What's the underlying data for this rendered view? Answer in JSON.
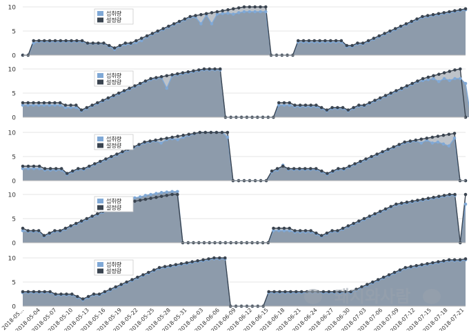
{
  "colors": {
    "intake": "#7fa8d6",
    "setpoint": "#3a4450",
    "fill": "#8a99aa",
    "grid": "#e4e4e4",
    "axis_text": "#333333"
  },
  "legend": {
    "intake_label": "섭취량",
    "set_label": "설정량"
  },
  "watermark": {
    "text": "돼지와사람"
  },
  "chart_data": [
    {
      "type": "line",
      "ylim": [
        0,
        10
      ],
      "yticks": [
        "0",
        "5",
        "10"
      ],
      "x_tick_labels": [
        "2018-05...",
        "2018-05-04",
        "2018-05-07",
        "2018-05-10",
        "2018-05-13",
        "2018-05-16",
        "2018-05-19",
        "2018-05-22",
        "2018-05-25",
        "2018-05-28",
        "2018-05-31",
        "2018-06-03",
        "2018-06-06",
        "2018-06-09",
        "2018-06-12",
        "2018-06-15",
        "2018-06-18",
        "2018-06-21",
        "2018-06-24",
        "2018-06-27",
        "2018-06-30",
        "2018-07-03",
        "2018-07-06",
        "2018-07-09",
        "2018-07-12",
        "2018-07-15",
        "2018-07-18",
        "2018-07-21"
      ],
      "series": [
        {
          "name": "설정량",
          "values": [
            0,
            0,
            3,
            3,
            3,
            3,
            3,
            3,
            3,
            3,
            3,
            3,
            2.5,
            2.5,
            2.5,
            2.5,
            2,
            1.5,
            2,
            2.5,
            2.5,
            3,
            3.5,
            4,
            4.5,
            5,
            5.5,
            6,
            6.5,
            7,
            7.5,
            8,
            8.2,
            8.4,
            8.6,
            8.8,
            9,
            9.2,
            9.4,
            9.6,
            9.8,
            10,
            10,
            10,
            10,
            10,
            0,
            0,
            0,
            0,
            0,
            3,
            3,
            3,
            3,
            3,
            3,
            3,
            3,
            3,
            2,
            2,
            2.5,
            2.5,
            3,
            3.5,
            4,
            4.5,
            5,
            5.5,
            6,
            6.5,
            7,
            7.5,
            8,
            8.2,
            8.4,
            8.6,
            8.8,
            9,
            9.2,
            9.4,
            9.6
          ]
        },
        {
          "name": "섭취량",
          "values": [
            0,
            0,
            2.5,
            2.8,
            2.8,
            2.8,
            2.8,
            2.8,
            2.8,
            2.8,
            2.8,
            2.8,
            2.4,
            2.4,
            2.4,
            2.4,
            1.8,
            1.2,
            1.8,
            2.2,
            2.3,
            2.6,
            3,
            3.8,
            4.3,
            4.8,
            5.3,
            5.8,
            6.3,
            6.8,
            7.3,
            7.8,
            7.9,
            6.5,
            8.3,
            6.5,
            8.5,
            8.6,
            8.7,
            8.5,
            8.8,
            9,
            9,
            9,
            9,
            9,
            0,
            0,
            0,
            0,
            0,
            2.7,
            2.7,
            2.7,
            2.7,
            2.7,
            2.7,
            2.7,
            2.7,
            2.7,
            1.8,
            1.8,
            2.3,
            2.3,
            2.8,
            3.3,
            3.8,
            4.3,
            4.8,
            5.3,
            5.8,
            6.3,
            6.8,
            7.3,
            7.8,
            8,
            8.2,
            8.4,
            8.6,
            8.8,
            9,
            9.2,
            9.4
          ]
        }
      ]
    },
    {
      "type": "line",
      "ylim": [
        0,
        10
      ],
      "yticks": [
        "0",
        "5",
        "10"
      ],
      "x_tick_labels": [
        "2018-05...",
        "2018-05-04",
        "2018-05-07",
        "2018-05-10",
        "2018-05-13",
        "2018-05-16",
        "2018-05-19",
        "2018-05-22",
        "2018-05-25",
        "2018-05-28",
        "2018-05-31",
        "2018-06-03",
        "2018-06-06",
        "2018-06-09",
        "2018-06-12",
        "2018-06-15",
        "2018-06-18",
        "2018-06-21",
        "2018-06-24",
        "2018-06-27",
        "2018-06-30",
        "2018-07-03",
        "2018-07-06",
        "2018-07-09",
        "2018-07-12",
        "2018-07-15",
        "2018-07-18",
        "2018-07-21"
      ],
      "series": [
        {
          "name": "설정량",
          "values": [
            3,
            3,
            3,
            3,
            3,
            3,
            3,
            3,
            2.5,
            2.5,
            2.5,
            1.5,
            2,
            2.5,
            3,
            3.5,
            4,
            4.5,
            5,
            5.5,
            6,
            6.5,
            7,
            7.5,
            8,
            8.2,
            8.4,
            8.6,
            8.8,
            9,
            9.2,
            9.4,
            9.6,
            9.8,
            10,
            10,
            10,
            10,
            0,
            0,
            0,
            0,
            0,
            0,
            0,
            0,
            0,
            0,
            3,
            3,
            3,
            2.5,
            2.5,
            2.5,
            2.5,
            2.5,
            2,
            1.5,
            2,
            2,
            2,
            1.5,
            2,
            2.5,
            2.5,
            3,
            3.5,
            4,
            4.5,
            5,
            5.5,
            6,
            6.5,
            7,
            7.5,
            8,
            8.3,
            8.6,
            8.9,
            9.2,
            9.5,
            9.8,
            10,
            0
          ]
        },
        {
          "name": "섭취량",
          "values": [
            2.5,
            2.5,
            2.5,
            2.5,
            2.5,
            2.5,
            2.5,
            2.5,
            2,
            2,
            2,
            1.3,
            1.8,
            2.3,
            2.8,
            3.3,
            3.8,
            4.3,
            4.8,
            5.3,
            5.8,
            6.3,
            6.8,
            7.3,
            7.8,
            8,
            8.2,
            6,
            8.6,
            8.8,
            9,
            9.2,
            9.4,
            9.6,
            9.8,
            9.8,
            9.8,
            9.8,
            0,
            0,
            0,
            0,
            0,
            0,
            0,
            0,
            0,
            0,
            2.5,
            2.5,
            2.5,
            2.2,
            2.2,
            2.2,
            2.2,
            2.2,
            1.8,
            1.3,
            1.8,
            1.8,
            1.8,
            1.3,
            1.8,
            2.3,
            2.3,
            2.8,
            3.3,
            3.8,
            4.3,
            4.8,
            5.3,
            5.8,
            6.3,
            6.8,
            7.3,
            7.6,
            7.8,
            8,
            7.4,
            8,
            7.6,
            8,
            8,
            7,
            0
          ]
        }
      ]
    },
    {
      "type": "line",
      "ylim": [
        0,
        10
      ],
      "yticks": [
        "0",
        "5",
        "10"
      ],
      "x_tick_labels": [
        "2018-05...",
        "2018-05-04",
        "2018-05-07",
        "2018-05-10",
        "2018-05-13",
        "2018-05-16",
        "2018-05-19",
        "2018-05-22",
        "2018-05-25",
        "2018-05-28",
        "2018-05-31",
        "2018-06-03",
        "2018-06-06",
        "2018-06-09",
        "2018-06-12",
        "2018-06-15",
        "2018-06-18",
        "2018-06-21",
        "2018-06-24",
        "2018-06-27",
        "2018-06-30",
        "2018-07-03",
        "2018-07-06",
        "2018-07-09",
        "2018-07-12",
        "2018-07-15",
        "2018-07-18",
        "2018-07-21"
      ],
      "series": [
        {
          "name": "설정량",
          "values": [
            3,
            3,
            3,
            3,
            2.5,
            2.5,
            2.5,
            2.5,
            1.5,
            2,
            2.5,
            2.5,
            3,
            3.5,
            4,
            4.5,
            5,
            5.5,
            6,
            6.5,
            7,
            7.5,
            8,
            8.2,
            8.4,
            8.6,
            8.8,
            9,
            9.2,
            9.4,
            9.6,
            9.8,
            10,
            10,
            10,
            10,
            10,
            10,
            0,
            0,
            0,
            0,
            0,
            0,
            0,
            2,
            2.5,
            3,
            2.5,
            2.5,
            2.5,
            2.5,
            2.5,
            2.5,
            2,
            1.5,
            2,
            2.5,
            2.5,
            3,
            3.5,
            4,
            4.5,
            5,
            5.5,
            6,
            6.5,
            7,
            7.5,
            8,
            8.2,
            8.4,
            8.6,
            8.8,
            9,
            9.2,
            9.4,
            9.6,
            9.8,
            0,
            0
          ]
        },
        {
          "name": "섭취량",
          "values": [
            2.5,
            2.5,
            2.5,
            2.5,
            2.2,
            2.2,
            2.2,
            2.2,
            1.3,
            1.8,
            2.3,
            2.3,
            2.8,
            3.3,
            3.8,
            4.3,
            4.8,
            5.3,
            5.8,
            6.3,
            6.8,
            7.3,
            7.8,
            8,
            8.2,
            7.8,
            8.5,
            8.7,
            8.5,
            9,
            9.4,
            9.7,
            10,
            10,
            10,
            10,
            10,
            9,
            0,
            0,
            0,
            0,
            0,
            0,
            0,
            1.8,
            2.2,
            3.2,
            2.3,
            2.3,
            2.3,
            2.3,
            2.3,
            2.3,
            1.8,
            1.3,
            1.8,
            2.3,
            2.3,
            2.8,
            3.3,
            3.8,
            4.3,
            4.8,
            5.3,
            5.8,
            6.3,
            6.8,
            7.3,
            7.8,
            8,
            8.2,
            7.8,
            8.4,
            7.8,
            8,
            7.6,
            7.2,
            8.8,
            0,
            0
          ]
        }
      ]
    },
    {
      "type": "line",
      "ylim": [
        0,
        10
      ],
      "yticks": [
        "0",
        "5",
        "10"
      ],
      "x_tick_labels": [
        "2018-05...",
        "2018-05-04",
        "2018-05-07",
        "2018-05-10",
        "2018-05-13",
        "2018-05-16",
        "2018-05-19",
        "2018-05-22",
        "2018-05-25",
        "2018-05-28",
        "2018-05-31",
        "2018-06-03",
        "2018-06-06",
        "2018-06-09",
        "2018-06-12",
        "2018-06-15",
        "2018-06-18",
        "2018-06-21",
        "2018-06-24",
        "2018-06-27",
        "2018-06-30",
        "2018-07-03",
        "2018-07-06",
        "2018-07-09",
        "2018-07-12",
        "2018-07-15",
        "2018-07-18",
        "2018-07-21"
      ],
      "series": [
        {
          "name": "설정량",
          "values": [
            3,
            2.5,
            2.5,
            2.5,
            1.5,
            2,
            2.5,
            2.5,
            3,
            3.5,
            4,
            4.5,
            5,
            5.5,
            6,
            6.5,
            7,
            7.5,
            8,
            8.2,
            8.4,
            8.6,
            8.8,
            9,
            9.2,
            9.4,
            9.6,
            9.8,
            10,
            10,
            0,
            0,
            0,
            0,
            0,
            0,
            0,
            0,
            0,
            0,
            0,
            0,
            0,
            0,
            0,
            0,
            0,
            3,
            3,
            3,
            3,
            2.5,
            2.5,
            2.5,
            2.5,
            2,
            1.5,
            2,
            2.5,
            2.5,
            3,
            3.5,
            4,
            4.5,
            5,
            5.5,
            6,
            6.5,
            7,
            7.5,
            8,
            8.2,
            8.4,
            8.6,
            8.8,
            9,
            9.2,
            9.4,
            9.6,
            9.8,
            10,
            10,
            0,
            10
          ]
        },
        {
          "name": "섭취량",
          "values": [
            2.5,
            2.3,
            2.3,
            2.3,
            1.3,
            1.8,
            2.3,
            2.3,
            2.8,
            3.3,
            3.8,
            4.3,
            4.8,
            5.3,
            5.8,
            6.3,
            7,
            7.8,
            8.3,
            8.8,
            9,
            9.3,
            9.5,
            9.8,
            10,
            10.2,
            10.4,
            10.5,
            10.6,
            10.6,
            0,
            0,
            0,
            0,
            0,
            0,
            0,
            0,
            0,
            0,
            0,
            0,
            0,
            0,
            0,
            0,
            0,
            2.5,
            2.5,
            2.5,
            2.5,
            2.2,
            2.2,
            2.2,
            2.2,
            1.8,
            1.3,
            1.8,
            2.3,
            2.3,
            2.8,
            3.3,
            3.8,
            4.3,
            4.8,
            5.3,
            5.8,
            6.3,
            6.8,
            7.3,
            7.8,
            8,
            8.2,
            8.4,
            8.6,
            8.8,
            9,
            9.2,
            9.4,
            9.6,
            9.8,
            9.8,
            0,
            8
          ]
        }
      ]
    },
    {
      "type": "line",
      "ylim": [
        0,
        10
      ],
      "yticks": [
        "0",
        "5",
        "10"
      ],
      "x_tick_labels": [
        "2018-05...",
        "2018-05-04",
        "2018-05-07",
        "2018-05-10",
        "2018-05-13",
        "2018-05-16",
        "2018-05-19",
        "2018-05-22",
        "2018-05-25",
        "2018-05-28",
        "2018-05-31",
        "2018-06-03",
        "2018-06-06",
        "2018-06-09",
        "2018-06-12",
        "2018-06-15",
        "2018-06-18",
        "2018-06-21",
        "2018-06-24",
        "2018-06-27",
        "2018-06-30",
        "2018-07-03",
        "2018-07-06",
        "2018-07-09",
        "2018-07-12",
        "2018-07-15",
        "2018-07-18",
        "2018-07-21"
      ],
      "series": [
        {
          "name": "설정량",
          "values": [
            3,
            3,
            3,
            3,
            3,
            3,
            2.5,
            2.5,
            2.5,
            2.5,
            2,
            1.5,
            2,
            2.5,
            2.5,
            3,
            3.5,
            4,
            4.5,
            5,
            5.5,
            6,
            6.5,
            7,
            7.5,
            8,
            8.2,
            8.4,
            8.6,
            8.8,
            9,
            9.2,
            9.4,
            9.6,
            9.8,
            10,
            10,
            10,
            0,
            0,
            0,
            0,
            0,
            0,
            0,
            3,
            3,
            3,
            3,
            3,
            3,
            3,
            3,
            3,
            3,
            3,
            3,
            3,
            3,
            3,
            3,
            3.5,
            4,
            4.5,
            5,
            5.5,
            6,
            6.5,
            7,
            7.5,
            8,
            8.2,
            8.4,
            8.6,
            8.8,
            9,
            9.2,
            9.4,
            9.6,
            9.6,
            9.6,
            9.8
          ]
        },
        {
          "name": "섭취량",
          "values": [
            2.8,
            2.8,
            2.8,
            2.8,
            2.8,
            2.8,
            2.3,
            2.3,
            2.3,
            2.3,
            1.8,
            1.3,
            1.8,
            2.3,
            2.3,
            2.8,
            3.3,
            3.8,
            4.3,
            4.8,
            5.3,
            5.8,
            6.3,
            6.8,
            7.3,
            7.8,
            8,
            8.2,
            8.4,
            8.6,
            8.8,
            9,
            9.2,
            9.4,
            9.6,
            9.8,
            9.8,
            9.8,
            0,
            0,
            0,
            0,
            0,
            0,
            0,
            2.8,
            2.8,
            2.8,
            2.8,
            2.8,
            2.8,
            2.8,
            2.8,
            2.8,
            2.8,
            2.8,
            2.8,
            2.8,
            2.8,
            2.8,
            2.8,
            3.3,
            3.8,
            4.3,
            4.8,
            5.3,
            5.8,
            6.3,
            6.8,
            7.3,
            7.8,
            8,
            8.2,
            8.4,
            8.6,
            8.8,
            9,
            9.2,
            9.4,
            9.4,
            9.4,
            9.6
          ]
        }
      ]
    }
  ]
}
